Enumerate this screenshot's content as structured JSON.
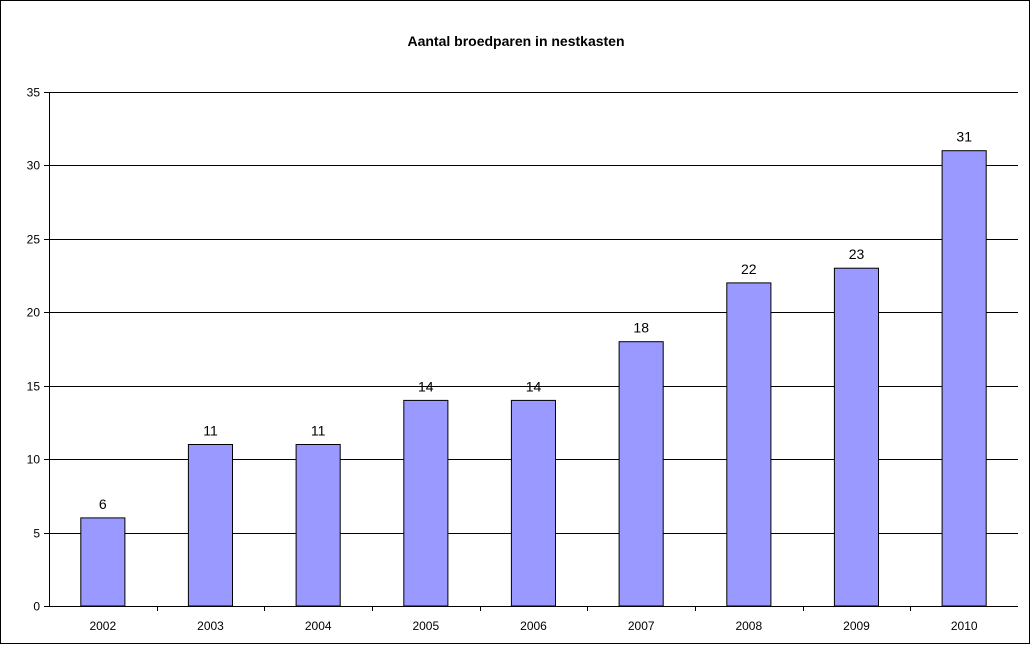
{
  "chart_data": {
    "type": "bar",
    "title": "Aantal broedparen in nestkasten",
    "categories": [
      "2002",
      "2003",
      "2004",
      "2005",
      "2006",
      "2007",
      "2008",
      "2009",
      "2010"
    ],
    "series": [
      {
        "values": [
          6,
          11,
          11,
          14,
          14,
          18,
          22,
          23,
          31
        ]
      }
    ],
    "xlabel": "",
    "ylabel": "",
    "ylim": [
      0,
      35
    ],
    "yticks": [
      0,
      5,
      10,
      15,
      20,
      25,
      30,
      35
    ],
    "grid": true,
    "legend": "none",
    "data_labels": true,
    "colors": {
      "bar_fill": "#9999ff",
      "bar_stroke": "#000000",
      "grid": "#000000",
      "text": "#000000"
    }
  }
}
